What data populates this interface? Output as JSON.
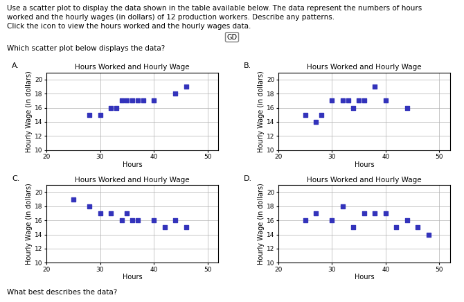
{
  "annotations": [
    "Use a scatter plot to display the data shown in the table available below. The data represent the numbers of hours",
    "worked and the hourly wages (in dollars) of 12 production workers. Describe any patterns.",
    "Click the icon to view the hours worked and the hourly wages data.",
    "GD",
    "Which scatter plot below displays the data?",
    "What best describes the data?"
  ],
  "chart_data": [
    {
      "type": "scatter",
      "title": "Hours Worked and Hourly Wage",
      "annotations": [
        "A."
      ],
      "x_label": "Hours",
      "y_label": "Hourly Wage (in dollars)",
      "x": [
        28,
        30,
        32,
        33,
        34,
        35,
        36,
        37,
        38,
        40,
        44,
        46
      ],
      "values": [
        15,
        15,
        16,
        16,
        17,
        17,
        17,
        17,
        17,
        17,
        18,
        19
      ],
      "color": "#3333bb",
      "marker": "square",
      "xlim": [
        20,
        52
      ],
      "xticks": [
        20,
        30,
        40,
        50
      ],
      "ylim": [
        10,
        21
      ],
      "yticks": [
        10,
        12,
        14,
        16,
        18,
        20
      ],
      "grid": true
    },
    {
      "type": "scatter",
      "title": "Hours Worked and Hourly Wage",
      "annotations": [
        "B."
      ],
      "x_label": "Hours",
      "y_label": "Hourly Wage (in dollars)",
      "x": [
        25,
        27,
        28,
        30,
        32,
        33,
        34,
        35,
        36,
        38,
        40,
        44
      ],
      "values": [
        15,
        14,
        15,
        17,
        17,
        17,
        16,
        17,
        17,
        19,
        17,
        16
      ],
      "color": "#3333bb",
      "marker": "square",
      "xlim": [
        20,
        52
      ],
      "xticks": [
        20,
        30,
        40,
        50
      ],
      "ylim": [
        10,
        21
      ],
      "yticks": [
        10,
        12,
        14,
        16,
        18,
        20
      ],
      "grid": true
    },
    {
      "type": "scatter",
      "title": "Hours Worked and Hourly Wage",
      "annotations": [
        "C."
      ],
      "x_label": "Hours",
      "y_label": "Hourly Wage (in dollars)",
      "x": [
        25,
        28,
        30,
        32,
        34,
        35,
        36,
        37,
        40,
        42,
        44,
        46
      ],
      "values": [
        19,
        18,
        17,
        17,
        16,
        17,
        16,
        16,
        16,
        15,
        16,
        15
      ],
      "color": "#3333bb",
      "marker": "square",
      "xlim": [
        20,
        52
      ],
      "xticks": [
        20,
        30,
        40,
        50
      ],
      "ylim": [
        10,
        21
      ],
      "yticks": [
        10,
        12,
        14,
        16,
        18,
        20
      ],
      "grid": true
    },
    {
      "type": "scatter",
      "title": "Hours Worked and Hourly Wage",
      "annotations": [
        "D."
      ],
      "x_label": "Hours",
      "y_label": "Hourly Wage (in dollars)",
      "x": [
        25,
        27,
        30,
        32,
        34,
        36,
        38,
        40,
        42,
        44,
        46,
        48
      ],
      "values": [
        16,
        17,
        16,
        18,
        15,
        17,
        17,
        17,
        15,
        16,
        15,
        14
      ],
      "color": "#3333bb",
      "marker": "square",
      "xlim": [
        20,
        52
      ],
      "xticks": [
        20,
        30,
        40,
        50
      ],
      "ylim": [
        10,
        21
      ],
      "yticks": [
        10,
        12,
        14,
        16,
        18,
        20
      ],
      "grid": true
    }
  ]
}
